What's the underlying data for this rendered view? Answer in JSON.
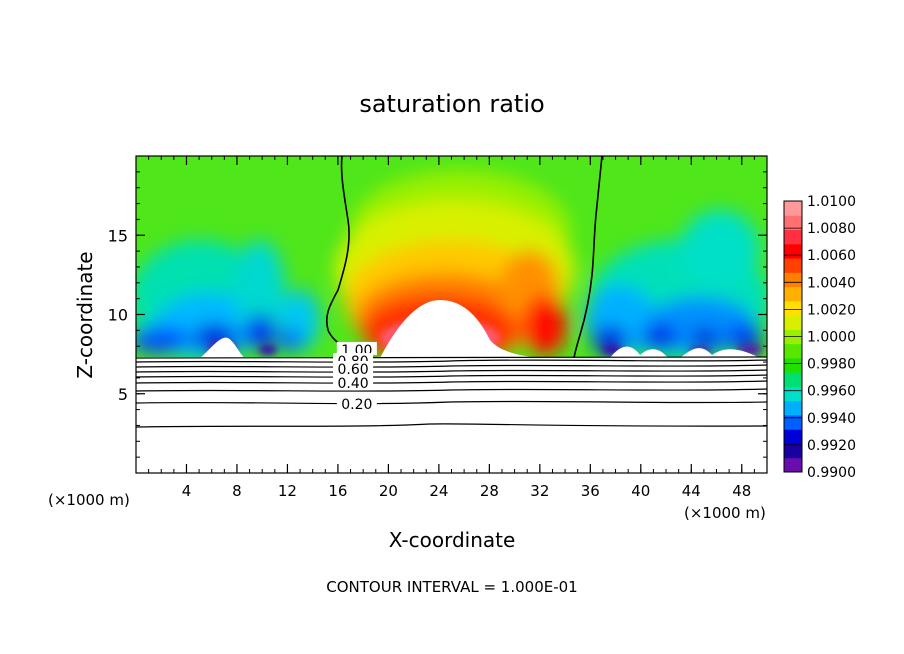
{
  "chart_data": {
    "type": "heatmap",
    "title": "saturation ratio",
    "xlabel": "X-coordinate",
    "ylabel": "Z-coordinate",
    "x_unit_note": "(×1000 m)",
    "footer": "CONTOUR INTERVAL = 1.000E-01",
    "xlim": [
      0,
      50
    ],
    "ylim": [
      0,
      20
    ],
    "x_ticks": [
      4,
      8,
      12,
      16,
      20,
      24,
      28,
      32,
      36,
      40,
      44,
      48
    ],
    "x_ticks_minor_step": 1,
    "y_ticks": [
      5,
      10,
      15
    ],
    "y_ticks_minor_step": 1,
    "colorbar": {
      "labels": [
        "1.0100",
        "1.0080",
        "1.0060",
        "1.0040",
        "1.0020",
        "1.0000",
        "0.9980",
        "0.9960",
        "0.9940",
        "0.9920",
        "0.9900"
      ],
      "range": [
        0.99,
        1.01
      ],
      "colors": [
        "#6a0dad",
        "#1a00a0",
        "#0000d8",
        "#0060ff",
        "#00b0ff",
        "#00e0c8",
        "#00e070",
        "#20e000",
        "#58e800",
        "#98f000",
        "#d8f000",
        "#ffe000",
        "#ffb000",
        "#ff8000",
        "#ff4000",
        "#ff0000",
        "#ff3040",
        "#ff7070",
        "#ff9898"
      ]
    },
    "surface_height": 7.3,
    "contour_labels": [
      {
        "x": 17.5,
        "y": 7.7,
        "text": "1.00"
      },
      {
        "x": 17.2,
        "y": 7.0,
        "text": "0.80"
      },
      {
        "x": 17.2,
        "y": 6.5,
        "text": "0.60"
      },
      {
        "x": 17.2,
        "y": 5.6,
        "text": "0.40"
      },
      {
        "x": 17.5,
        "y": 4.3,
        "text": "0.20"
      }
    ],
    "contour_lines_below_surface": [
      {
        "value": 0.9,
        "y": 7.2
      },
      {
        "value": 0.8,
        "y": 6.9
      },
      {
        "value": 0.7,
        "y": 6.6
      },
      {
        "value": 0.6,
        "y": 6.3
      },
      {
        "value": 0.5,
        "y": 5.95
      },
      {
        "value": 0.4,
        "y": 5.6
      },
      {
        "value": 0.3,
        "y": 5.15
      },
      {
        "value": 0.2,
        "y": 4.5
      },
      {
        "value": 0.1,
        "y": 3.0
      }
    ]
  }
}
